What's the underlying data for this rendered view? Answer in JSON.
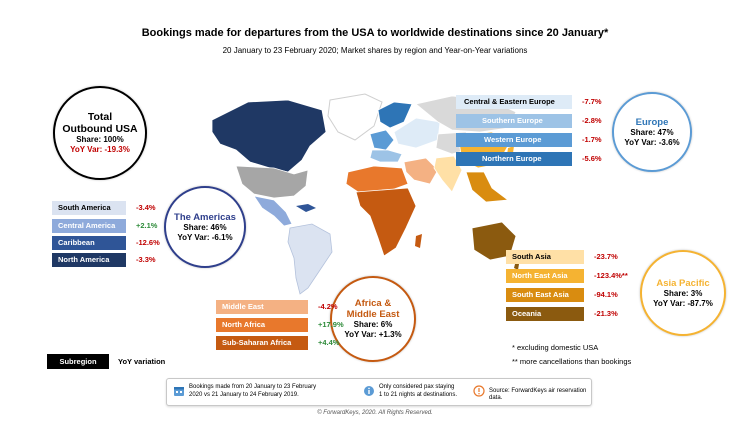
{
  "title": "Bookings made for departures from the USA to worldwide destinations since 20 January*",
  "subtitle": "20 January to 23 February 2020; Market shares by region and Year-on-Year variations",
  "total": {
    "name_line1": "Total",
    "name_line2": "Outbound USA",
    "share": "Share: 100%",
    "yoy": "YoY Var: -19.3%"
  },
  "americas": {
    "name": "The Americas",
    "share": "Share: 46%",
    "yoy": "YoY Var: -6.1%",
    "subregions": [
      {
        "label": "South America",
        "value": "-3.4%",
        "color": "#dbe3f1",
        "text_color": "#000000"
      },
      {
        "label": "Central America",
        "value": "+2.1%",
        "color": "#8eaadb",
        "text_color": "#ffffff"
      },
      {
        "label": "Caribbean",
        "value": "-12.6%",
        "color": "#2f5597",
        "text_color": "#ffffff"
      },
      {
        "label": "North America",
        "value": "-3.3%",
        "color": "#1f3864",
        "text_color": "#ffffff"
      }
    ]
  },
  "europe": {
    "name": "Europe",
    "share": "Share: 47%",
    "yoy": "YoY Var: -3.6%",
    "subregions": [
      {
        "label": "Central & Eastern Europe",
        "value": "-7.7%",
        "color": "#deebf7",
        "text_color": "#000000"
      },
      {
        "label": "Southern Europe",
        "value": "-2.8%",
        "color": "#9dc3e6",
        "text_color": "#ffffff"
      },
      {
        "label": "Western Europe",
        "value": "-1.7%",
        "color": "#5b9bd5",
        "text_color": "#ffffff"
      },
      {
        "label": "Northern Europe",
        "value": "-5.6%",
        "color": "#2e75b6",
        "text_color": "#ffffff"
      }
    ]
  },
  "africa": {
    "name_line1": "Africa &",
    "name_line2": "Middle East",
    "share": "Share: 6%",
    "yoy": "YoY Var: +1.3%",
    "subregions": [
      {
        "label": "Middle East",
        "value": "-4.2%",
        "color": "#f4b183",
        "text_color": "#ffffff"
      },
      {
        "label": "North Africa",
        "value": "+17.9%",
        "color": "#e8782c",
        "text_color": "#ffffff"
      },
      {
        "label": "Sub-Saharan Africa",
        "value": "+4.4%",
        "color": "#c55a11",
        "text_color": "#ffffff"
      }
    ]
  },
  "asia": {
    "name": "Asia Pacific",
    "share": "Share: 3%",
    "yoy": "YoY Var: -87.7%",
    "subregions": [
      {
        "label": "South Asia",
        "value": "-23.7%",
        "color": "#ffe0a6",
        "text_color": "#000000"
      },
      {
        "label": "North East Asia",
        "value": "-123.4%**",
        "color": "#f5b332",
        "text_color": "#ffffff"
      },
      {
        "label": "South East Asia",
        "value": "-94.1%",
        "color": "#d98c10",
        "text_color": "#ffffff"
      },
      {
        "label": "Oceania",
        "value": "-21.3%",
        "color": "#8b5a0f",
        "text_color": "#ffffff"
      }
    ]
  },
  "notes": {
    "excluding": "* excluding domestic USA",
    "cancellations": "** more cancellations than bookings"
  },
  "legend": {
    "subregion": "Subregion",
    "yoy": "YoY variation"
  },
  "footer": {
    "item1_line1": "Bookings made from 20 January to 23 February",
    "item1_line2": "2020 vs 21 January to 24 February 2019.",
    "item2_line1": "Only considered pax staying",
    "item2_line2": "1 to 21 nights at destinations.",
    "item3": "Source: ForwardKeys air reservation data."
  },
  "copyright": "© ForwardKeys, 2020. All Rights Reserved.",
  "colors": {
    "americas_ring": "#2f3f8c",
    "europe_ring": "#5b9bd5",
    "africa_ring": "#c55a11",
    "asia_ring": "#f5b332",
    "negative": "#c00000",
    "positive": "#2e8b3a"
  }
}
